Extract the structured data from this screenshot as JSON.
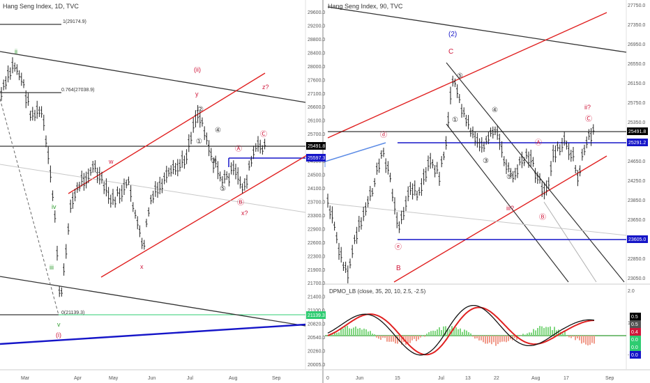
{
  "left_panel": {
    "title": "Hang Seng Index, 1D, TVC",
    "price_axis": [
      "29600.0",
      "29200.0",
      "28800.0",
      "28400.0",
      "28000.0",
      "27600.0",
      "27100.0",
      "26600.0",
      "26100.0",
      "25700.0",
      "25300.0",
      "24900.0",
      "24500.0",
      "24100.0",
      "23700.0",
      "23300.0",
      "22900.0",
      "22600.0",
      "22300.0",
      "21900.0",
      "21700.0",
      "21400.0",
      "21100.0",
      "20820.0",
      "20540.0",
      "20260.0",
      "20005.0"
    ],
    "time_axis": [
      "Mar",
      "Apr",
      "May",
      "Jun",
      "Jul",
      "Aug",
      "Sep"
    ],
    "price_tags": [
      {
        "label": "25491.8",
        "bg": "#000000",
        "fg": "#ffffff"
      },
      {
        "label": "25597.3",
        "bg": "#1515c8",
        "fg": "#ffffff"
      },
      {
        "label": "21139.3",
        "bg": "#2ecc71",
        "fg": "#ffffff"
      }
    ],
    "fib_labels": [
      "1(29174.9)",
      "0.764(27038.9)",
      "0(21139.3)"
    ],
    "wave_labels": [
      {
        "text": "ii",
        "color": "#2e9b2e"
      },
      {
        "text": "(ii)",
        "color": "#d0163a"
      },
      {
        "text": "y",
        "color": "#d0163a"
      },
      {
        "text": "w",
        "color": "#d0163a"
      },
      {
        "text": "x",
        "color": "#d0163a"
      },
      {
        "text": "z?",
        "color": "#d0163a"
      },
      {
        "text": "x?",
        "color": "#d0163a"
      },
      {
        "text": "iii",
        "color": "#2e9b2e"
      },
      {
        "text": "iv",
        "color": "#2e9b2e"
      },
      {
        "text": "v",
        "color": "#2e9b2e"
      },
      {
        "text": "(i)",
        "color": "#d0163a"
      }
    ],
    "circle_labels": [
      "②",
      "①",
      "③",
      "④",
      "⑤",
      "Ⓐ",
      "Ⓑ",
      "Ⓒ"
    ]
  },
  "right_panel": {
    "title": "Hang Seng Index, 90, TVC",
    "price_axis": [
      "27750.0",
      "27350.0",
      "26950.0",
      "26550.0",
      "26150.0",
      "25750.0",
      "25350.0",
      "24950.0",
      "24650.0",
      "24250.0",
      "23850.0",
      "23650.0",
      "23250.0",
      "22850.0",
      "23050.0"
    ],
    "time_axis": [
      "0",
      "Jun",
      "15",
      "Jul",
      "13",
      "22",
      "Aug",
      "17",
      "Sep"
    ],
    "price_tags": [
      {
        "label": "25491.8",
        "bg": "#000000",
        "fg": "#ffffff"
      },
      {
        "label": "25291.2",
        "bg": "#1515c8",
        "fg": "#ffffff"
      },
      {
        "label": "23605.0",
        "bg": "#1515c8",
        "fg": "#ffffff"
      }
    ],
    "wave_labels": [
      {
        "text": "(2)",
        "color": "#1515c8"
      },
      {
        "text": "C",
        "color": "#d0163a"
      },
      {
        "text": "B",
        "color": "#d0163a"
      },
      {
        "text": "iii?",
        "color": "#d0163a"
      },
      {
        "text": "ii?",
        "color": "#d0163a"
      }
    ],
    "circle_labels": [
      "ⓓ",
      "ⓔ",
      "⑤",
      "①",
      "②",
      "③",
      "④",
      "⑤",
      "Ⓐ",
      "Ⓑ",
      "Ⓒ"
    ]
  },
  "indicator": {
    "title": "DPMO_LB (close, 35, 20, 10, 2.5, -2.5)",
    "axis": [
      "2.0",
      "1.0",
      "-1.0"
    ],
    "tags": [
      {
        "label": "0.5",
        "bg": "#000000",
        "fg": "#ffffff"
      },
      {
        "label": "0.5",
        "bg": "#555555",
        "fg": "#ffffff"
      },
      {
        "label": "0.4",
        "bg": "#d0163a",
        "fg": "#ffffff"
      },
      {
        "label": "0.0",
        "bg": "#2ecc71",
        "fg": "#ffffff"
      },
      {
        "label": "0.0",
        "bg": "#2ecc71",
        "fg": "#ffffff"
      },
      {
        "label": "0.0",
        "bg": "#1515c8",
        "fg": "#ffffff"
      }
    ]
  },
  "chart_data": [
    {
      "type": "candlestick",
      "title": "Hang Seng Index, 1D, TVC",
      "x": [
        "Mar",
        "Apr",
        "May",
        "Jun",
        "Jul",
        "Aug",
        "Sep"
      ],
      "last_price": 25491.8,
      "levels": [
        25597.3,
        21139.3
      ],
      "fib": {
        "1": 29174.9,
        "0.764": 27038.9,
        "0": 21139.3
      }
    },
    {
      "type": "candlestick",
      "title": "Hang Seng Index, 90, TVC",
      "x": [
        "Jun",
        "15",
        "Jul",
        "13",
        "22",
        "Aug",
        "17",
        "Sep"
      ],
      "last_price": 25491.8,
      "levels": [
        25291.2,
        23605.0
      ]
    },
    {
      "type": "line",
      "title": "DPMO_LB (close, 35, 20, 10, 2.5, -2.5)",
      "ylim": [
        -1.0,
        2.0
      ],
      "series": [
        {
          "values": [
            0.5
          ]
        },
        {
          "values": [
            0.4
          ]
        }
      ]
    }
  ]
}
